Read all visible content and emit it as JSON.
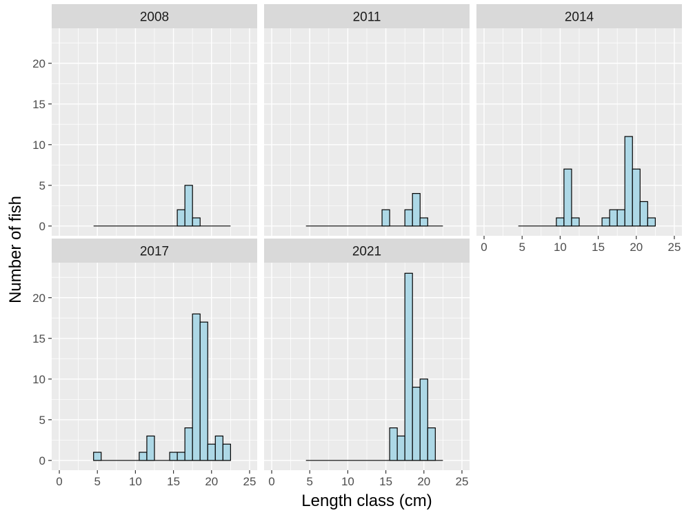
{
  "chart_data": {
    "type": "bar",
    "chart_kind": "faceted histogram",
    "xlabel": "Length class (cm)",
    "ylabel": "Number of fish",
    "xlim": [
      -1,
      26
    ],
    "ylim": [
      -1.2,
      24.3
    ],
    "x_ticks": [
      0,
      5,
      10,
      15,
      20,
      25
    ],
    "y_ticks": [
      0,
      5,
      10,
      15,
      20
    ],
    "bin_width": 1,
    "colors": {
      "bar_fill": "#add8e6",
      "bar_outline": "#000000",
      "panel_bg": "#ebebeb",
      "strip_bg": "#d9d9d9",
      "grid": "#ffffff"
    },
    "grid": true,
    "facets": [
      {
        "label": "2008",
        "bins": [
          5,
          6,
          7,
          8,
          9,
          10,
          11,
          12,
          13,
          14,
          15,
          16,
          17,
          18,
          19,
          20,
          21,
          22
        ],
        "counts": [
          0,
          0,
          0,
          0,
          0,
          0,
          0,
          0,
          0,
          0,
          0,
          2,
          5,
          1,
          0,
          0,
          0,
          0
        ]
      },
      {
        "label": "2011",
        "bins": [
          5,
          6,
          7,
          8,
          9,
          10,
          11,
          12,
          13,
          14,
          15,
          16,
          17,
          18,
          19,
          20,
          21,
          22
        ],
        "counts": [
          0,
          0,
          0,
          0,
          0,
          0,
          0,
          0,
          0,
          0,
          2,
          0,
          0,
          2,
          4,
          1,
          0,
          0
        ]
      },
      {
        "label": "2014",
        "bins": [
          5,
          6,
          7,
          8,
          9,
          10,
          11,
          12,
          13,
          14,
          15,
          16,
          17,
          18,
          19,
          20,
          21,
          22
        ],
        "counts": [
          0,
          0,
          0,
          0,
          0,
          1,
          7,
          1,
          0,
          0,
          0,
          1,
          2,
          2,
          11,
          7,
          3,
          1
        ]
      },
      {
        "label": "2017",
        "bins": [
          5,
          6,
          7,
          8,
          9,
          10,
          11,
          12,
          13,
          14,
          15,
          16,
          17,
          18,
          19,
          20,
          21,
          22
        ],
        "counts": [
          1,
          0,
          0,
          0,
          0,
          0,
          1,
          3,
          0,
          0,
          1,
          1,
          4,
          18,
          17,
          2,
          3,
          2
        ]
      },
      {
        "label": "2021",
        "bins": [
          5,
          6,
          7,
          8,
          9,
          10,
          11,
          12,
          13,
          14,
          15,
          16,
          17,
          18,
          19,
          20,
          21,
          22
        ],
        "counts": [
          0,
          0,
          0,
          0,
          0,
          0,
          0,
          0,
          0,
          0,
          0,
          4,
          3,
          23,
          9,
          10,
          4,
          0
        ]
      }
    ]
  }
}
